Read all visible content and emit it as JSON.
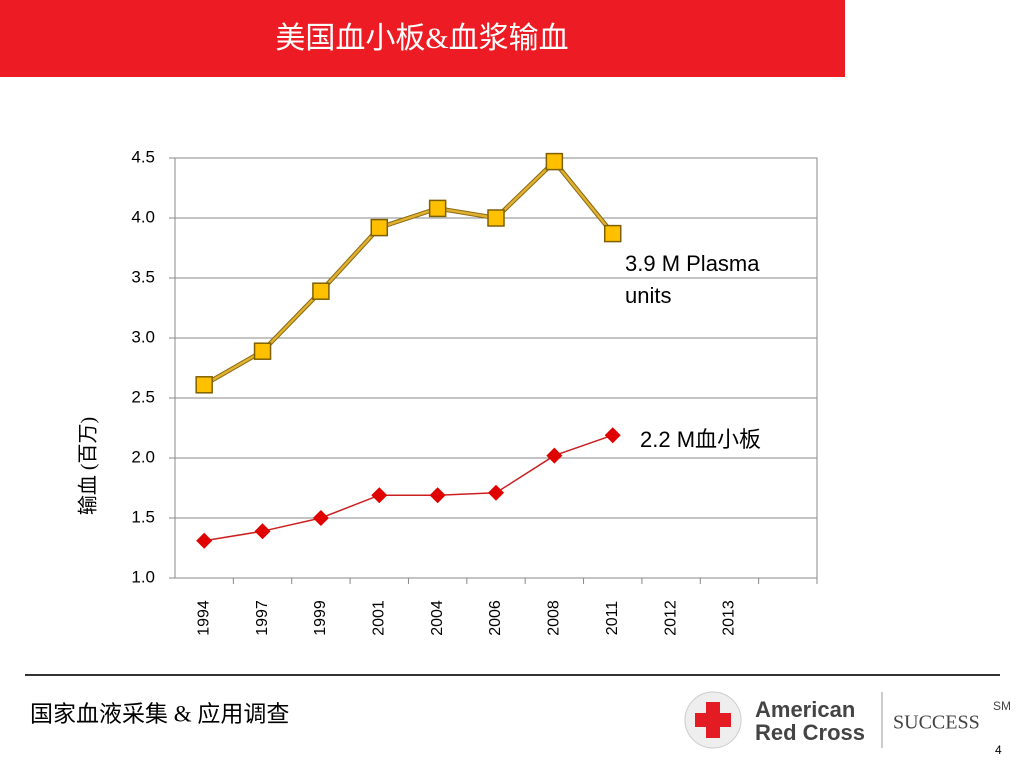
{
  "title": "美国血小板&血浆输血",
  "chart_data": {
    "type": "line",
    "ylabel": "输血 (百万)",
    "categories": [
      "1994",
      "1997",
      "1999",
      "2001",
      "2004",
      "2006",
      "2008",
      "2011",
      "2012",
      "2013",
      null
    ],
    "series": [
      {
        "name": "Plasma",
        "color": "#e0b030",
        "marker_color": "#ffc000",
        "marker": "square",
        "values": [
          2.61,
          2.89,
          3.39,
          3.92,
          4.08,
          4.0,
          4.47,
          3.87,
          null,
          null,
          null
        ]
      },
      {
        "name": "血小板",
        "color": "#cc2020",
        "marker_color": "#e00000",
        "marker": "diamond",
        "values": [
          1.31,
          1.39,
          1.5,
          1.69,
          1.69,
          1.71,
          2.02,
          2.19,
          null,
          null,
          null
        ]
      }
    ],
    "ylim": [
      1,
      4.5
    ],
    "yticks": [
      {
        "value": 1,
        "label": "1.0"
      },
      {
        "value": 1.5,
        "label": "1.5"
      },
      {
        "value": 2,
        "label": "2.0"
      },
      {
        "value": 2.5,
        "label": "2.5"
      },
      {
        "value": 3,
        "label": "3.0"
      },
      {
        "value": 3.5,
        "label": "3.5"
      },
      {
        "value": 4,
        "label": "4.0"
      },
      {
        "value": 4.5,
        "label": "4.5"
      }
    ],
    "grid": true,
    "annotations": [
      "3.9 M Plasma",
      "units",
      "2.2 M血小板"
    ]
  },
  "footer": {
    "text": "国家血液采集 & 应用调查",
    "logo_line1": "American",
    "logo_line2": "Red Cross",
    "tagline": "SUCCESS",
    "tagline_mark": "SM",
    "page": "4"
  }
}
